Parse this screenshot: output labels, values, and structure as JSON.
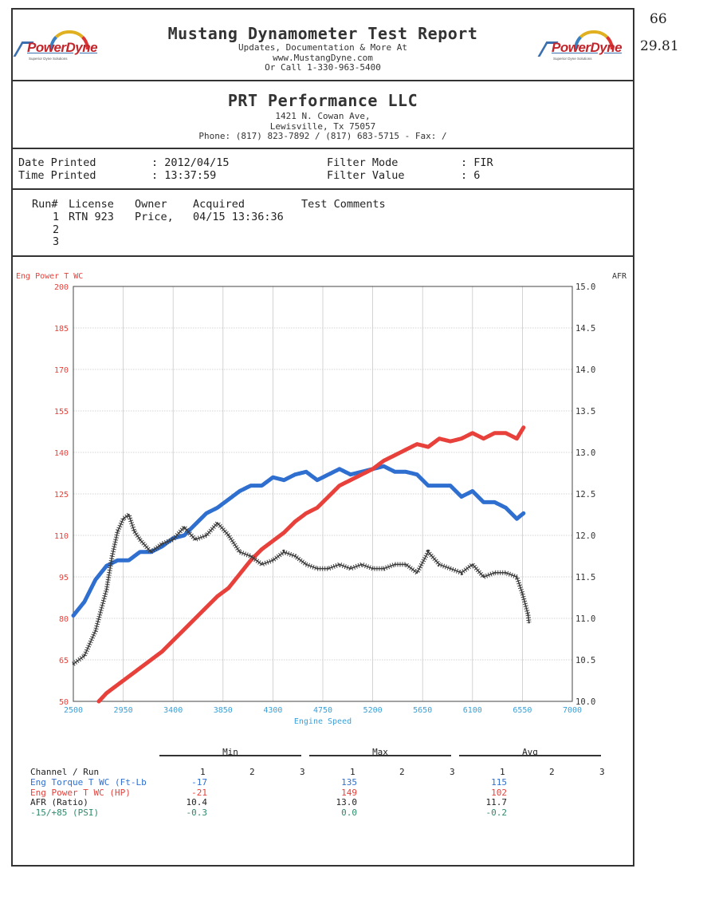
{
  "header": {
    "logo_text": "PowerDyne",
    "logo_tagline": "Superior Dyne Solutions",
    "title": "Mustang Dynamometer Test Report",
    "line1": "Updates, Documentation & More At",
    "line2": "www.MustangDyne.com",
    "line3": "Or Call 1-330-963-5400"
  },
  "handwritten": {
    "top": "66",
    "bottom": "29.81"
  },
  "shop": {
    "name": "PRT Performance LLC",
    "address1": "1421 N. Cowan Ave,",
    "address2": "Lewisville, Tx  75057",
    "phone": "Phone: (817) 823-7892 / (817) 683-5715 - Fax:  /"
  },
  "print_info": {
    "date_label": "Date Printed",
    "date_value": ": 2012/04/15",
    "time_label": "Time Printed",
    "time_value": ": 13:37:59",
    "filter_mode_label": "Filter Mode",
    "filter_mode_value": ": FIR",
    "filter_value_label": "Filter Value",
    "filter_value_value": ": 6"
  },
  "runs": {
    "headers": [
      "Run#",
      "License",
      "Owner",
      "Acquired",
      "Test Comments"
    ],
    "rows": [
      {
        "run": "1",
        "license": "RTN 923",
        "owner": "Price,",
        "acquired": "04/15 13:36:36"
      },
      {
        "run": "2",
        "license": "",
        "owner": "",
        "acquired": ""
      },
      {
        "run": "3",
        "license": "",
        "owner": "",
        "acquired": ""
      }
    ]
  },
  "colors": {
    "power": "#e8403a",
    "torque": "#2f6fd0",
    "afr": "#3c3c3c",
    "psi": "#2e8b6a",
    "grid": "#c8c8c8"
  },
  "chart_data": {
    "type": "line",
    "left_axis_label": "Eng Power T WC",
    "right_axis_label": "AFR",
    "xlabel": "Engine Speed",
    "x_ticks": [
      2500,
      2950,
      3400,
      3850,
      4300,
      4750,
      5200,
      5650,
      6100,
      6550,
      7000
    ],
    "xlim": [
      2500,
      7000
    ],
    "y_left_ticks": [
      200,
      185,
      170,
      155,
      140,
      125,
      110,
      95,
      80,
      65,
      50
    ],
    "ylim_left": [
      50,
      200
    ],
    "y_right_ticks": [
      "15.0",
      "14.5",
      "14.0",
      "13.5",
      "13.0",
      "12.5",
      "12.0",
      "11.5",
      "11.0",
      "10.5",
      "10.0"
    ],
    "ylim_right": [
      10.0,
      15.0
    ],
    "grid": true,
    "series": [
      {
        "name": "Eng Torque T WC (Ft-Lb)",
        "axis": "left",
        "x": [
          2500,
          2600,
          2700,
          2800,
          2900,
          3000,
          3100,
          3200,
          3300,
          3400,
          3500,
          3600,
          3700,
          3800,
          3900,
          4000,
          4100,
          4200,
          4300,
          4400,
          4500,
          4600,
          4700,
          4800,
          4900,
          5000,
          5100,
          5200,
          5300,
          5400,
          5500,
          5600,
          5700,
          5800,
          5900,
          6000,
          6100,
          6200,
          6300,
          6400,
          6500,
          6560
        ],
        "y": [
          81,
          86,
          94,
          99,
          101,
          101,
          104,
          104,
          106,
          109,
          110,
          114,
          118,
          120,
          123,
          126,
          128,
          128,
          131,
          130,
          132,
          133,
          130,
          132,
          134,
          132,
          133,
          134,
          135,
          133,
          133,
          132,
          128,
          128,
          128,
          124,
          126,
          122,
          122,
          120,
          116,
          118
        ]
      },
      {
        "name": "Eng Power T WC (HP)",
        "axis": "left",
        "x": [
          2730,
          2800,
          2900,
          3000,
          3100,
          3200,
          3300,
          3400,
          3500,
          3600,
          3700,
          3800,
          3900,
          4000,
          4100,
          4200,
          4300,
          4400,
          4500,
          4600,
          4700,
          4800,
          4900,
          5000,
          5100,
          5200,
          5300,
          5400,
          5500,
          5600,
          5700,
          5800,
          5900,
          6000,
          6100,
          6200,
          6300,
          6400,
          6500,
          6560
        ],
        "y": [
          50,
          53,
          56,
          59,
          62,
          65,
          68,
          72,
          76,
          80,
          84,
          88,
          91,
          96,
          101,
          105,
          108,
          111,
          115,
          118,
          120,
          124,
          128,
          130,
          132,
          134,
          137,
          139,
          141,
          143,
          142,
          145,
          144,
          145,
          147,
          145,
          147,
          147,
          145,
          149
        ]
      },
      {
        "name": "AFR (Ratio)",
        "axis": "right",
        "x": [
          2500,
          2600,
          2700,
          2800,
          2850,
          2900,
          2950,
          3000,
          3050,
          3100,
          3200,
          3300,
          3400,
          3500,
          3600,
          3700,
          3800,
          3900,
          4000,
          4100,
          4200,
          4300,
          4400,
          4500,
          4600,
          4700,
          4800,
          4900,
          5000,
          5100,
          5200,
          5300,
          5400,
          5500,
          5600,
          5700,
          5800,
          5900,
          6000,
          6100,
          6200,
          6300,
          6400,
          6500,
          6550,
          6600,
          6610
        ],
        "y": [
          10.45,
          10.55,
          10.85,
          11.35,
          11.75,
          12.05,
          12.2,
          12.25,
          12.05,
          11.95,
          11.8,
          11.9,
          11.95,
          12.1,
          11.95,
          12.0,
          12.15,
          12.0,
          11.8,
          11.75,
          11.65,
          11.7,
          11.8,
          11.75,
          11.65,
          11.6,
          11.6,
          11.65,
          11.6,
          11.65,
          11.6,
          11.6,
          11.65,
          11.65,
          11.55,
          11.8,
          11.65,
          11.6,
          11.55,
          11.65,
          11.5,
          11.55,
          11.55,
          11.5,
          11.3,
          11.05,
          10.95
        ]
      }
    ]
  },
  "summary": {
    "group_labels": [
      "Min",
      "Max",
      "Avg"
    ],
    "run_headers": [
      "1",
      "2",
      "3"
    ],
    "channel_header": "Channel / Run",
    "rows": [
      {
        "name": "Eng Torque T WC (Ft-Lb",
        "min": "-17",
        "max": "135",
        "avg": "115"
      },
      {
        "name": "Eng Power T WC (HP)",
        "min": "-21",
        "max": "149",
        "avg": "102"
      },
      {
        "name": "AFR (Ratio)",
        "min": "10.4",
        "max": "13.0",
        "avg": "11.7"
      },
      {
        "name": "-15/+85 (PSI)",
        "min": "-0.3",
        "max": "0.0",
        "avg": "-0.2"
      }
    ]
  }
}
